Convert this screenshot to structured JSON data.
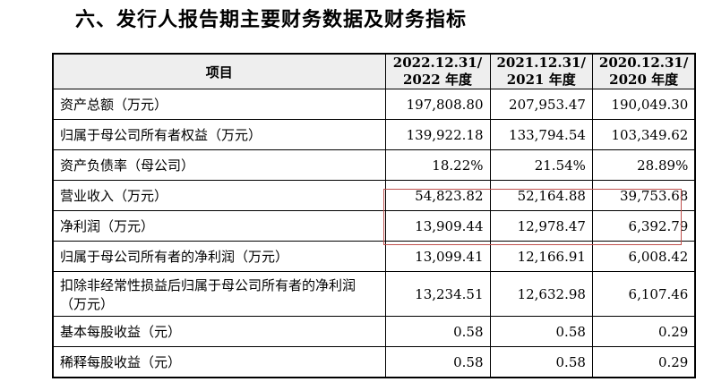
{
  "heading": "六、发行人报告期主要财务数据及财务指标",
  "table": {
    "item_header": "项目",
    "columns": [
      {
        "line1": "2022.12.31/",
        "line2": "2022 年度"
      },
      {
        "line1": "2021.12.31/",
        "line2": "2021 年度"
      },
      {
        "line1": "2020.12.31/",
        "line2": "2020 年度"
      }
    ],
    "rows": [
      {
        "label": "资产总额（万元）",
        "values": [
          "197,808.80",
          "207,953.47",
          "190,049.30"
        ]
      },
      {
        "label": "归属于母公司所有者权益（万元）",
        "values": [
          "139,922.18",
          "133,794.54",
          "103,349.62"
        ]
      },
      {
        "label": "资产负债率（母公司）",
        "values": [
          "18.22%",
          "21.54%",
          "28.89%"
        ]
      },
      {
        "label": "营业收入（万元）",
        "values": [
          "54,823.82",
          "52,164.88",
          "39,753.68"
        ]
      },
      {
        "label": "净利润（万元）",
        "values": [
          "13,909.44",
          "12,978.47",
          "6,392.79"
        ]
      },
      {
        "label": "归属于母公司所有者的净利润（万元）",
        "values": [
          "13,099.41",
          "12,166.91",
          "6,008.42"
        ]
      },
      {
        "label": "扣除非经常性损益后归属于母公司所有者的净利润（万元）",
        "values": [
          "13,234.51",
          "12,632.98",
          "6,107.46"
        ]
      },
      {
        "label": "基本每股收益（元）",
        "values": [
          "0.58",
          "0.58",
          "0.29"
        ]
      },
      {
        "label": "稀释每股收益（元）",
        "values": [
          "0.58",
          "0.58",
          "0.29"
        ]
      }
    ]
  },
  "highlight_color": "#c0504d"
}
